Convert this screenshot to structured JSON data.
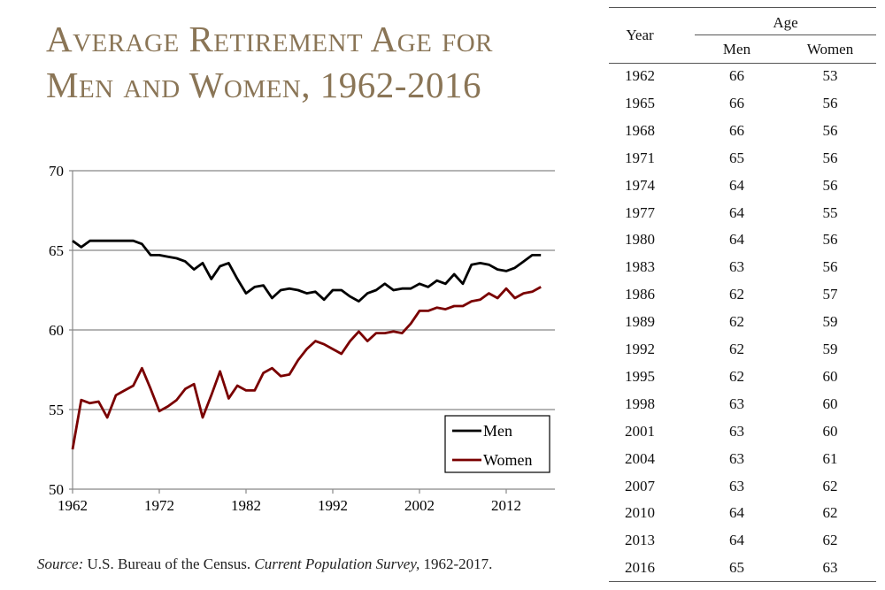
{
  "title_line1": "Average Retirement Age for",
  "title_line2": "Men and Women, 1962-2016",
  "source": {
    "label": "Source:",
    "text1": " U.S. Bureau of the Census. ",
    "publication": "Current Population Survey,",
    "text2": " 1962-2017."
  },
  "chart_data": {
    "type": "line",
    "title": "Average Retirement Age for Men and Women, 1962-2016",
    "xlim": [
      1962,
      2016
    ],
    "ylim": [
      50,
      70
    ],
    "x_ticks": [
      "1962",
      "1972",
      "1982",
      "1992",
      "2002",
      "2012"
    ],
    "y_ticks": [
      "50",
      "55",
      "60",
      "65",
      "70"
    ],
    "grid": "horizontal",
    "legend_position": "bottom-right",
    "x": [
      1962,
      1963,
      1964,
      1965,
      1966,
      1967,
      1968,
      1969,
      1970,
      1971,
      1972,
      1973,
      1974,
      1975,
      1976,
      1977,
      1978,
      1979,
      1980,
      1981,
      1982,
      1983,
      1984,
      1985,
      1986,
      1987,
      1988,
      1989,
      1990,
      1991,
      1992,
      1993,
      1994,
      1995,
      1996,
      1997,
      1998,
      1999,
      2000,
      2001,
      2002,
      2003,
      2004,
      2005,
      2006,
      2007,
      2008,
      2009,
      2010,
      2011,
      2012,
      2013,
      2014,
      2015,
      2016
    ],
    "series": [
      {
        "name": "Men",
        "color": "#000000",
        "values": [
          65.6,
          65.2,
          65.6,
          65.6,
          65.6,
          65.6,
          65.6,
          65.6,
          65.4,
          64.7,
          64.7,
          64.6,
          64.5,
          64.3,
          63.8,
          64.2,
          63.2,
          64.0,
          64.2,
          63.2,
          62.3,
          62.7,
          62.8,
          62.0,
          62.5,
          62.6,
          62.5,
          62.3,
          62.4,
          61.9,
          62.5,
          62.5,
          62.1,
          61.8,
          62.3,
          62.5,
          62.9,
          62.5,
          62.6,
          62.6,
          62.9,
          62.7,
          63.1,
          62.9,
          63.5,
          62.9,
          64.1,
          64.2,
          64.1,
          63.8,
          63.7,
          63.9,
          64.3,
          64.7,
          64.7
        ]
      },
      {
        "name": "Women",
        "color": "#7a0000",
        "values": [
          52.5,
          55.6,
          55.4,
          55.5,
          54.5,
          55.9,
          56.2,
          56.5,
          57.6,
          56.3,
          54.9,
          55.2,
          55.6,
          56.3,
          56.6,
          54.5,
          55.9,
          57.4,
          55.7,
          56.5,
          56.2,
          56.2,
          57.3,
          57.6,
          57.1,
          57.2,
          58.1,
          58.8,
          59.3,
          59.1,
          58.8,
          58.5,
          59.3,
          59.9,
          59.3,
          59.8,
          59.8,
          59.9,
          59.8,
          60.4,
          61.2,
          61.2,
          61.4,
          61.3,
          61.5,
          61.5,
          61.8,
          61.9,
          62.3,
          62.0,
          62.6,
          62.0,
          62.3,
          62.4,
          62.7
        ]
      }
    ]
  },
  "table": {
    "type": "table",
    "year_header": "Year",
    "age_header": "Age",
    "men_header": "Men",
    "women_header": "Women",
    "rows": [
      [
        "1962",
        "66",
        "53"
      ],
      [
        "1965",
        "66",
        "56"
      ],
      [
        "1968",
        "66",
        "56"
      ],
      [
        "1971",
        "65",
        "56"
      ],
      [
        "1974",
        "64",
        "56"
      ],
      [
        "1977",
        "64",
        "55"
      ],
      [
        "1980",
        "64",
        "56"
      ],
      [
        "1983",
        "63",
        "56"
      ],
      [
        "1986",
        "62",
        "57"
      ],
      [
        "1989",
        "62",
        "59"
      ],
      [
        "1992",
        "62",
        "59"
      ],
      [
        "1995",
        "62",
        "60"
      ],
      [
        "1998",
        "63",
        "60"
      ],
      [
        "2001",
        "63",
        "60"
      ],
      [
        "2004",
        "63",
        "61"
      ],
      [
        "2007",
        "63",
        "62"
      ],
      [
        "2010",
        "64",
        "62"
      ],
      [
        "2013",
        "64",
        "62"
      ],
      [
        "2016",
        "65",
        "63"
      ]
    ]
  }
}
